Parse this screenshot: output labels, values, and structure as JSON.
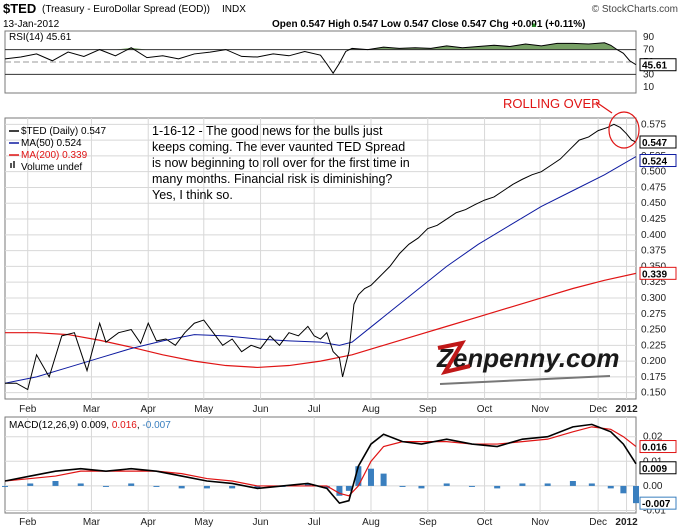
{
  "header": {
    "symbol": "$TED",
    "name": "(Treasury - EuroDollar Spread (EOD))",
    "exchange": "INDX",
    "copyright": "© StockCharts.com",
    "date": "13-Jan-2012",
    "ohlc_text": "Open 0.547   High 0.547   Low 0.547   Close 0.547   Chg +0.001 (+0.11%)",
    "ohlc_arrow": "▲"
  },
  "annotation": {
    "text_lines": [
      "1-16-12 - The good news for the bulls just",
      "keeps coming. The ever vaunted TED Spread",
      "is now beginning to roll over for the first time in",
      "many months. Financial risk is diminishing?",
      "Yes, I think so."
    ],
    "rolling_over": "ROLLING OVER",
    "logo_text": "Zenpenny.com"
  },
  "colors": {
    "price": "#000000",
    "ma50": "#0d1aa0",
    "ma200": "#e01414",
    "rsi_fill": "#5f8f4a",
    "macd_hist": "#3a7fbf",
    "annot_red": "#e01414"
  },
  "chart_data": [
    {
      "type": "line",
      "panel": "rsi",
      "title": "RSI(14) 45.61",
      "value_label": "45.61",
      "yticks": [
        10,
        30,
        50,
        70,
        90
      ],
      "ylim": [
        0,
        100
      ],
      "overbought": 70,
      "oversold": 30,
      "series": [
        {
          "name": "RSI(14)",
          "x": [
            0,
            0.025,
            0.05,
            0.075,
            0.1,
            0.125,
            0.15,
            0.175,
            0.2,
            0.225,
            0.25,
            0.275,
            0.3,
            0.325,
            0.35,
            0.375,
            0.4,
            0.425,
            0.45,
            0.475,
            0.5,
            0.51,
            0.52,
            0.53,
            0.54,
            0.55,
            0.575,
            0.6,
            0.625,
            0.65,
            0.675,
            0.7,
            0.725,
            0.75,
            0.775,
            0.8,
            0.825,
            0.85,
            0.875,
            0.9,
            0.925,
            0.95,
            0.96,
            0.97,
            0.98,
            0.99,
            1.0
          ],
          "values": [
            55,
            58,
            63,
            52,
            66,
            59,
            70,
            60,
            73,
            57,
            60,
            55,
            63,
            66,
            70,
            59,
            58,
            63,
            60,
            67,
            61,
            47,
            32,
            48,
            67,
            72,
            70,
            74,
            72,
            73,
            72,
            76,
            73,
            75,
            77,
            75,
            79,
            76,
            80,
            80,
            79,
            81,
            77,
            70,
            64,
            52,
            45.61
          ]
        }
      ]
    },
    {
      "type": "line",
      "panel": "price",
      "legend": [
        "$TED (Daily) 0.547",
        "MA(50) 0.524",
        "MA(200) 0.339",
        "Volume undef"
      ],
      "ylim": [
        0.14,
        0.585
      ],
      "yticks": [
        0.15,
        0.175,
        0.2,
        0.225,
        0.25,
        0.275,
        0.3,
        0.325,
        0.35,
        0.375,
        0.4,
        0.425,
        0.45,
        0.475,
        0.5,
        0.525,
        0.55,
        0.575
      ],
      "ytick_labels": [
        "0.150",
        "0.175",
        "0.200",
        "0.225",
        "0.250",
        "0.275",
        "0.300",
        "0.325",
        "0.350",
        "0.375",
        "0.400",
        "0.425",
        "0.450",
        "0.475",
        "0.500",
        "0.525",
        "0.550",
        "0.575"
      ],
      "value_labels": {
        "price": "0.547",
        "ma50": "0.524",
        "ma200": "0.339"
      },
      "xtick_labels": [
        "Feb",
        "Mar",
        "Apr",
        "May",
        "Jun",
        "Jul",
        "Aug",
        "Sep",
        "Oct",
        "Nov",
        "Dec",
        "2012"
      ],
      "xtick_pos": [
        0.036,
        0.137,
        0.227,
        0.315,
        0.405,
        0.49,
        0.58,
        0.67,
        0.76,
        0.848,
        0.94,
        0.985
      ],
      "series": [
        {
          "name": "$TED (Daily)",
          "x": [
            0,
            0.018,
            0.036,
            0.05,
            0.07,
            0.09,
            0.11,
            0.13,
            0.15,
            0.16,
            0.18,
            0.2,
            0.215,
            0.227,
            0.24,
            0.255,
            0.27,
            0.285,
            0.3,
            0.315,
            0.33,
            0.345,
            0.36,
            0.375,
            0.39,
            0.405,
            0.42,
            0.435,
            0.45,
            0.465,
            0.48,
            0.49,
            0.5,
            0.51,
            0.52,
            0.53,
            0.535,
            0.545,
            0.553,
            0.56,
            0.57,
            0.58,
            0.595,
            0.61,
            0.625,
            0.64,
            0.655,
            0.67,
            0.685,
            0.7,
            0.715,
            0.73,
            0.745,
            0.76,
            0.775,
            0.79,
            0.805,
            0.82,
            0.835,
            0.85,
            0.865,
            0.88,
            0.895,
            0.91,
            0.925,
            0.94,
            0.955,
            0.965,
            0.975,
            0.985,
            0.993,
            1.0
          ],
          "values": [
            0.165,
            0.165,
            0.155,
            0.21,
            0.175,
            0.24,
            0.245,
            0.185,
            0.26,
            0.23,
            0.245,
            0.25,
            0.228,
            0.26,
            0.232,
            0.235,
            0.225,
            0.245,
            0.26,
            0.265,
            0.245,
            0.225,
            0.235,
            0.215,
            0.225,
            0.22,
            0.24,
            0.225,
            0.245,
            0.24,
            0.255,
            0.24,
            0.235,
            0.245,
            0.215,
            0.205,
            0.175,
            0.215,
            0.29,
            0.305,
            0.315,
            0.32,
            0.335,
            0.35,
            0.37,
            0.385,
            0.395,
            0.41,
            0.415,
            0.425,
            0.435,
            0.44,
            0.448,
            0.455,
            0.46,
            0.47,
            0.48,
            0.488,
            0.495,
            0.5,
            0.51,
            0.52,
            0.535,
            0.55,
            0.555,
            0.565,
            0.57,
            0.575,
            0.57,
            0.56,
            0.55,
            0.547
          ]
        },
        {
          "name": "MA(50)",
          "x": [
            0,
            0.05,
            0.1,
            0.15,
            0.2,
            0.25,
            0.3,
            0.35,
            0.4,
            0.45,
            0.5,
            0.53,
            0.55,
            0.6,
            0.65,
            0.7,
            0.75,
            0.8,
            0.85,
            0.9,
            0.95,
            1.0
          ],
          "values": [
            0.165,
            0.175,
            0.19,
            0.205,
            0.22,
            0.232,
            0.242,
            0.24,
            0.235,
            0.232,
            0.23,
            0.225,
            0.23,
            0.27,
            0.31,
            0.35,
            0.385,
            0.415,
            0.445,
            0.47,
            0.495,
            0.524
          ]
        },
        {
          "name": "MA(200)",
          "x": [
            0,
            0.05,
            0.1,
            0.15,
            0.2,
            0.25,
            0.3,
            0.35,
            0.4,
            0.45,
            0.5,
            0.55,
            0.6,
            0.65,
            0.7,
            0.75,
            0.8,
            0.85,
            0.9,
            0.95,
            1.0
          ],
          "values": [
            0.245,
            0.245,
            0.242,
            0.233,
            0.222,
            0.21,
            0.2,
            0.193,
            0.19,
            0.193,
            0.2,
            0.21,
            0.225,
            0.24,
            0.255,
            0.27,
            0.285,
            0.3,
            0.315,
            0.328,
            0.339
          ]
        }
      ]
    },
    {
      "type": "line",
      "panel": "macd",
      "title": "MACD(12,26,9) 0.009, 0.016, -0.007",
      "title_parts": [
        "MACD(12,26,9) 0.009, ",
        "0.016",
        ", ",
        "-0.007"
      ],
      "ylim": [
        -0.011,
        0.028
      ],
      "yticks": [
        -0.01,
        0.0,
        0.01,
        0.02
      ],
      "ytick_labels": [
        "-0.01",
        "0.00",
        "0.01",
        "0.02"
      ],
      "value_labels": {
        "macd": "0.009",
        "signal": "0.016",
        "hist": "-0.007"
      },
      "xtick_labels": [
        "Feb",
        "Mar",
        "Apr",
        "May",
        "Jun",
        "Jul",
        "Aug",
        "Sep",
        "Oct",
        "Nov",
        "Dec",
        "2012"
      ],
      "xtick_pos": [
        0.036,
        0.137,
        0.227,
        0.315,
        0.405,
        0.49,
        0.58,
        0.67,
        0.76,
        0.848,
        0.94,
        0.985
      ],
      "series": [
        {
          "name": "MACD",
          "x": [
            0,
            0.04,
            0.08,
            0.12,
            0.16,
            0.2,
            0.24,
            0.28,
            0.32,
            0.36,
            0.4,
            0.44,
            0.48,
            0.51,
            0.53,
            0.545,
            0.56,
            0.58,
            0.6,
            0.63,
            0.66,
            0.7,
            0.74,
            0.78,
            0.82,
            0.86,
            0.9,
            0.93,
            0.96,
            0.98,
            1.0
          ],
          "values": [
            0.002,
            0.004,
            0.006,
            0.007,
            0.006,
            0.007,
            0.006,
            0.004,
            0.002,
            0.001,
            -0.001,
            0.0,
            0.001,
            -0.001,
            -0.007,
            -0.006,
            0.008,
            0.017,
            0.021,
            0.018,
            0.017,
            0.019,
            0.017,
            0.016,
            0.019,
            0.02,
            0.024,
            0.025,
            0.022,
            0.017,
            0.009
          ]
        },
        {
          "name": "Signal",
          "x": [
            0,
            0.04,
            0.08,
            0.12,
            0.16,
            0.2,
            0.24,
            0.28,
            0.32,
            0.36,
            0.4,
            0.44,
            0.48,
            0.51,
            0.53,
            0.545,
            0.56,
            0.58,
            0.6,
            0.63,
            0.66,
            0.7,
            0.74,
            0.78,
            0.82,
            0.86,
            0.9,
            0.93,
            0.96,
            0.98,
            1.0
          ],
          "values": [
            0.002,
            0.003,
            0.004,
            0.006,
            0.006,
            0.006,
            0.006,
            0.005,
            0.003,
            0.002,
            0.0,
            0.0,
            0.0,
            0.0,
            -0.003,
            -0.004,
            0.0,
            0.01,
            0.016,
            0.018,
            0.018,
            0.018,
            0.017,
            0.017,
            0.018,
            0.019,
            0.022,
            0.024,
            0.023,
            0.02,
            0.016
          ]
        },
        {
          "name": "Histogram",
          "x": [
            0,
            0.04,
            0.08,
            0.12,
            0.16,
            0.2,
            0.24,
            0.28,
            0.32,
            0.36,
            0.4,
            0.44,
            0.48,
            0.51,
            0.53,
            0.545,
            0.56,
            0.58,
            0.6,
            0.63,
            0.66,
            0.7,
            0.74,
            0.78,
            0.82,
            0.86,
            0.9,
            0.93,
            0.96,
            0.98,
            1.0
          ],
          "values": [
            0.0,
            0.001,
            0.002,
            0.001,
            0.0,
            0.001,
            0.0,
            -0.001,
            -0.001,
            -0.001,
            -0.001,
            0.0,
            0.001,
            -0.001,
            -0.004,
            -0.002,
            0.008,
            0.007,
            0.005,
            0.0,
            -0.001,
            0.001,
            0.0,
            -0.001,
            0.001,
            0.001,
            0.002,
            0.001,
            -0.001,
            -0.003,
            -0.007
          ]
        }
      ]
    }
  ]
}
